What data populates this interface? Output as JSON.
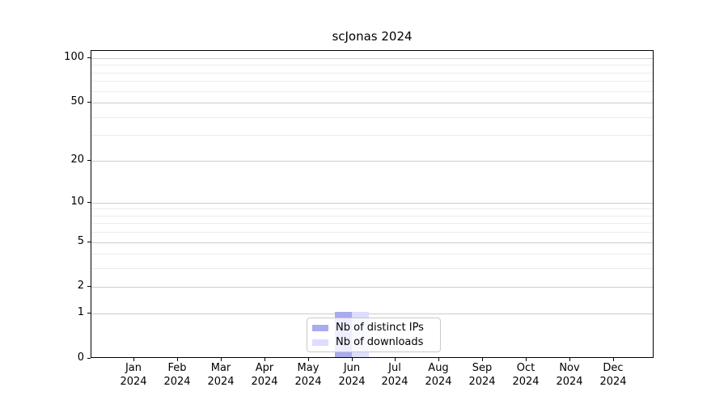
{
  "title": "scJonas 2024",
  "chart_data": {
    "type": "bar",
    "title": "scJonas 2024",
    "categories": [
      "Jan 2024",
      "Feb 2024",
      "Mar 2024",
      "Apr 2024",
      "May 2024",
      "Jun 2024",
      "Jul 2024",
      "Aug 2024",
      "Sep 2024",
      "Oct 2024",
      "Nov 2024",
      "Dec 2024"
    ],
    "series": [
      {
        "name": "Nb of distinct IPs",
        "color": "#aaaaee",
        "values": [
          0,
          0,
          0,
          0,
          0,
          1,
          0,
          0,
          0,
          0,
          0,
          0
        ]
      },
      {
        "name": "Nb of downloads",
        "color": "#ddddff",
        "values": [
          0,
          0,
          0,
          0,
          0,
          1,
          0,
          0,
          0,
          0,
          0,
          0
        ]
      }
    ],
    "xlabel": "",
    "ylabel": "",
    "yscale": "log1p",
    "ylim": [
      0,
      110
    ],
    "yticks": [
      0,
      1,
      2,
      5,
      10,
      20,
      50,
      100
    ],
    "yticks_minor": [
      3,
      4,
      6,
      7,
      8,
      9,
      30,
      40,
      60,
      70,
      80,
      90
    ],
    "grid": "horizontal",
    "legend_position": "lower center inside",
    "colors": {
      "axis": "#000000",
      "grid_major": "#cccccc",
      "grid_minor": "#ececec",
      "legend_border": "#c9c9c9"
    }
  }
}
